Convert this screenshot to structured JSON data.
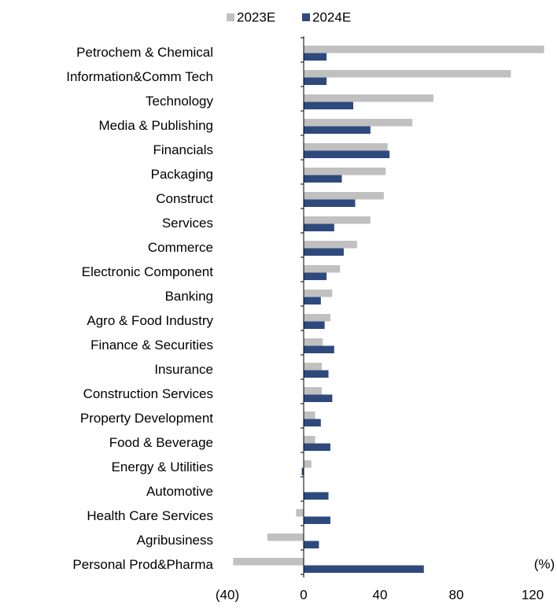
{
  "chart_data": {
    "type": "barh",
    "categories": [
      "Petrochem & Chemical",
      "Information&Comm Tech",
      "Technology",
      "Media & Publishing",
      "Financials",
      "Packaging",
      "Construct",
      "Services",
      "Commerce",
      "Electronic Component",
      "Banking",
      "Agro & Food Industry",
      "Finance & Securities",
      "Insurance",
      "Construction Services",
      "Property Development",
      "Food & Beverage",
      "Energy & Utilities",
      "Automotive",
      "Health Care Services",
      "Agribusiness",
      "Personal Prod&Pharma"
    ],
    "series": [
      {
        "name": "2023E",
        "color": "#c0c0c0",
        "values": [
          126,
          108.6,
          68,
          57,
          44,
          43,
          42,
          35,
          28,
          19,
          15,
          14,
          10,
          9.5,
          9.5,
          6,
          6,
          4,
          0,
          -4,
          -19,
          -37
        ]
      },
      {
        "name": "2024E",
        "color": "#2e4a7d",
        "values": [
          12,
          12,
          26,
          35,
          45,
          20,
          27,
          16,
          21,
          12,
          9,
          11,
          16,
          13,
          15,
          9,
          14,
          -1,
          13,
          14,
          8,
          63
        ]
      }
    ],
    "xlim": [
      -40,
      120
    ],
    "xticks": [
      {
        "value": -40,
        "label": "(40)"
      },
      0,
      40,
      80,
      120
    ],
    "x_label": "(%)",
    "legend": "top"
  }
}
